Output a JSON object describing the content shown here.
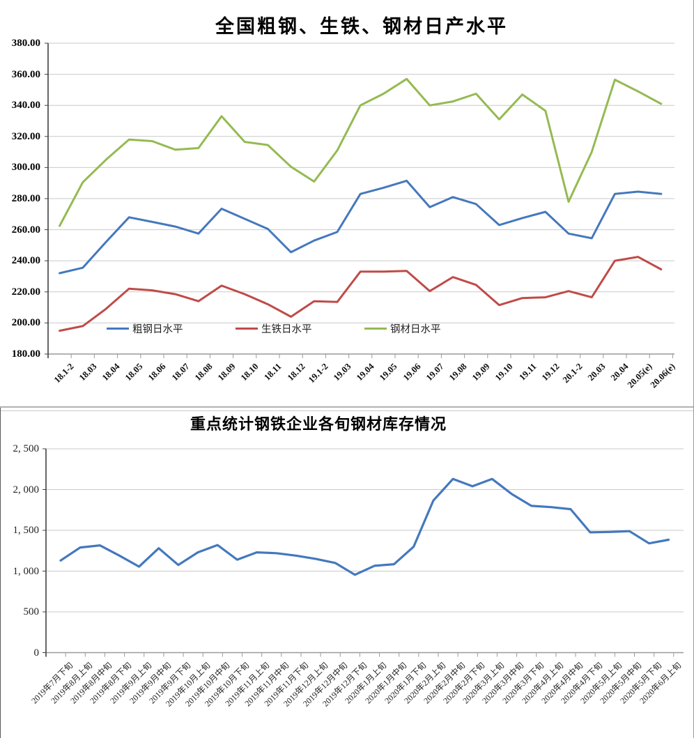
{
  "chart_data": [
    {
      "type": "line",
      "title": "全国粗钢、生铁、钢材日产水平",
      "ylim": [
        180,
        380
      ],
      "ytick_step": 20,
      "y_tick_labels": [
        "380.00",
        "360.00",
        "340.00",
        "320.00",
        "300.00",
        "280.00",
        "260.00",
        "240.00",
        "220.00",
        "200.00",
        "180.00"
      ],
      "grid": "horizontal",
      "legend_position": "inside-bottom",
      "categories": [
        "18.1-2",
        "18.03",
        "18.04",
        "18.05",
        "18.06",
        "18.07",
        "18.08",
        "18.09",
        "18.10",
        "18.11",
        "18.12",
        "19.1-2",
        "19.03",
        "19.04",
        "19.05",
        "19.06",
        "19.07",
        "19.08",
        "19.09",
        "19.10",
        "19.11",
        "19.12",
        "20.1-2",
        "20.03",
        "20.04",
        "20.05(e)",
        "20.06(e)"
      ],
      "series": [
        {
          "name": "粗钢日水平",
          "color": "#4478bd",
          "values": [
            232,
            235.5,
            252,
            268,
            265,
            262,
            257.5,
            273.5,
            267,
            260.5,
            245.5,
            253,
            258.5,
            283,
            287,
            291.5,
            274.5,
            281,
            276.5,
            263,
            267.5,
            271.5,
            257.5,
            254.5,
            283,
            284.5,
            283
          ]
        },
        {
          "name": "生铁日水平",
          "color": "#bf4b48",
          "values": [
            195,
            198,
            209,
            222,
            221,
            218.5,
            214,
            224,
            218.5,
            212,
            204,
            214,
            213.5,
            233,
            233,
            233.5,
            220.5,
            229.5,
            224.5,
            211.5,
            216,
            216.5,
            220.5,
            216.5,
            240,
            242.5,
            234.5
          ]
        },
        {
          "name": "钢材日水平",
          "color": "#94ba52",
          "values": [
            262.5,
            290.5,
            305,
            318,
            317,
            311.5,
            312.5,
            333,
            316.5,
            314.5,
            300.5,
            291,
            311,
            340,
            347.5,
            357,
            340,
            342.5,
            347.5,
            331,
            347,
            336.5,
            278,
            310,
            356.5,
            349,
            341
          ]
        }
      ]
    },
    {
      "type": "line",
      "title": "重点统计钢铁企业各旬钢材库存情况",
      "ylim": [
        0,
        2500
      ],
      "ytick_step": 500,
      "y_tick_labels": [
        "2, 500",
        "2, 000",
        "1, 500",
        "1, 000",
        "500",
        "0"
      ],
      "grid": "horizontal",
      "legend_position": "none",
      "categories": [
        "2019年7月下旬",
        "2019年8月上旬",
        "2019年8月中旬",
        "2019年8月下旬",
        "2019年9月上旬",
        "2019年9月中旬",
        "2019年9月下旬",
        "2019年10月上旬",
        "2019年10月中旬",
        "2019年10月下旬",
        "2019年11月上旬",
        "2019年11月中旬",
        "2019年11月下旬",
        "2019年12月上旬",
        "2019年12月中旬",
        "2019年12月下旬",
        "2020年1月上旬",
        "2020年1月中旬",
        "2020年1月下旬",
        "2020年2月上旬",
        "2020年2月中旬",
        "2020年2月下旬",
        "2020年3月上旬",
        "2020年3月中旬",
        "2020年3月下旬",
        "2020年4月上旬",
        "2020年4月中旬",
        "2020年4月下旬",
        "2020年5月上旬",
        "2020年5月中旬",
        "2020年5月下旬",
        "2020年6月上旬"
      ],
      "series": [
        {
          "color": "#4478bd",
          "values": [
            1130,
            1290,
            1315,
            1190,
            1055,
            1280,
            1075,
            1230,
            1320,
            1140,
            1230,
            1220,
            1190,
            1150,
            1100,
            955,
            1065,
            1085,
            1300,
            1865,
            2130,
            2040,
            2130,
            1945,
            1800,
            1785,
            1760,
            1475,
            1480,
            1490,
            1340,
            1385
          ]
        }
      ]
    }
  ],
  "colors": {
    "gridline": "#c9c9c9",
    "axis_dark": "#404040",
    "axis_gray": "#9a9a9a"
  }
}
